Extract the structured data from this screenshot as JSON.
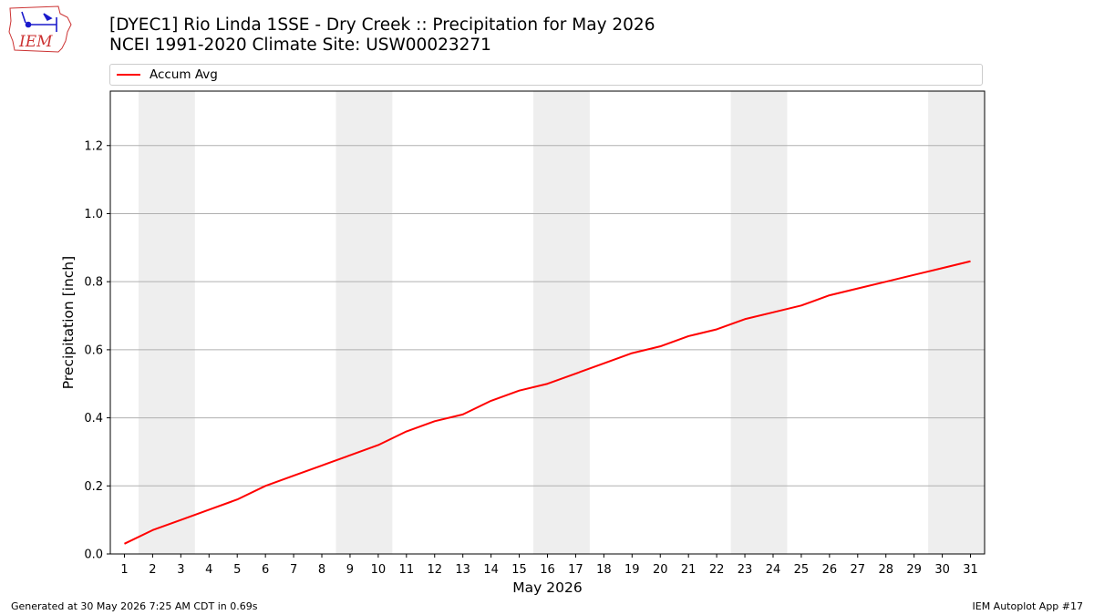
{
  "header": {
    "title_line1": "[DYEC1] Rio Linda 1SSE - Dry Creek :: Precipitation for May 2026",
    "title_line2": "NCEI 1991-2020 Climate Site: USW00023271",
    "logo_text": "IEM"
  },
  "footer": {
    "generated": "Generated at 30 May 2026 7:25 AM CDT in 0.69s",
    "app": "IEM Autoplot App #17"
  },
  "colors": {
    "series": "#ff0000",
    "weekend_band": "#eeeeee",
    "grid": "#b0b0b0",
    "logo": "#cc3333"
  },
  "chart_data": {
    "type": "line",
    "xlabel": "May 2026",
    "ylabel": "Precipitation [inch]",
    "xlim": [
      0.5,
      31.5
    ],
    "ylim": [
      0,
      1.36
    ],
    "yticks": [
      0.0,
      0.2,
      0.4,
      0.6,
      0.8,
      1.0,
      1.2
    ],
    "ytick_labels": [
      "0.0",
      "0.2",
      "0.4",
      "0.6",
      "0.8",
      "1.0",
      "1.2"
    ],
    "x": [
      1,
      2,
      3,
      4,
      5,
      6,
      7,
      8,
      9,
      10,
      11,
      12,
      13,
      14,
      15,
      16,
      17,
      18,
      19,
      20,
      21,
      22,
      23,
      24,
      25,
      26,
      27,
      28,
      29,
      30,
      31
    ],
    "xtick_labels": [
      "1",
      "2",
      "3",
      "4",
      "5",
      "6",
      "7",
      "8",
      "9",
      "10",
      "11",
      "12",
      "13",
      "14",
      "15",
      "16",
      "17",
      "18",
      "19",
      "20",
      "21",
      "22",
      "23",
      "24",
      "25",
      "26",
      "27",
      "28",
      "29",
      "30",
      "31"
    ],
    "shaded_days": [
      [
        2,
        3
      ],
      [
        9,
        10
      ],
      [
        16,
        17
      ],
      [
        23,
        24
      ],
      [
        30,
        31
      ]
    ],
    "grid": "y",
    "legend": {
      "position": "top",
      "entries": [
        "Accum Avg"
      ]
    },
    "series": [
      {
        "name": "Accum Avg",
        "values": [
          0.03,
          0.07,
          0.1,
          0.13,
          0.16,
          0.2,
          0.23,
          0.26,
          0.29,
          0.32,
          0.36,
          0.39,
          0.41,
          0.45,
          0.48,
          0.5,
          0.53,
          0.56,
          0.59,
          0.61,
          0.64,
          0.66,
          0.69,
          0.71,
          0.73,
          0.76,
          0.78,
          0.8,
          0.82,
          0.84,
          0.86
        ]
      }
    ]
  }
}
